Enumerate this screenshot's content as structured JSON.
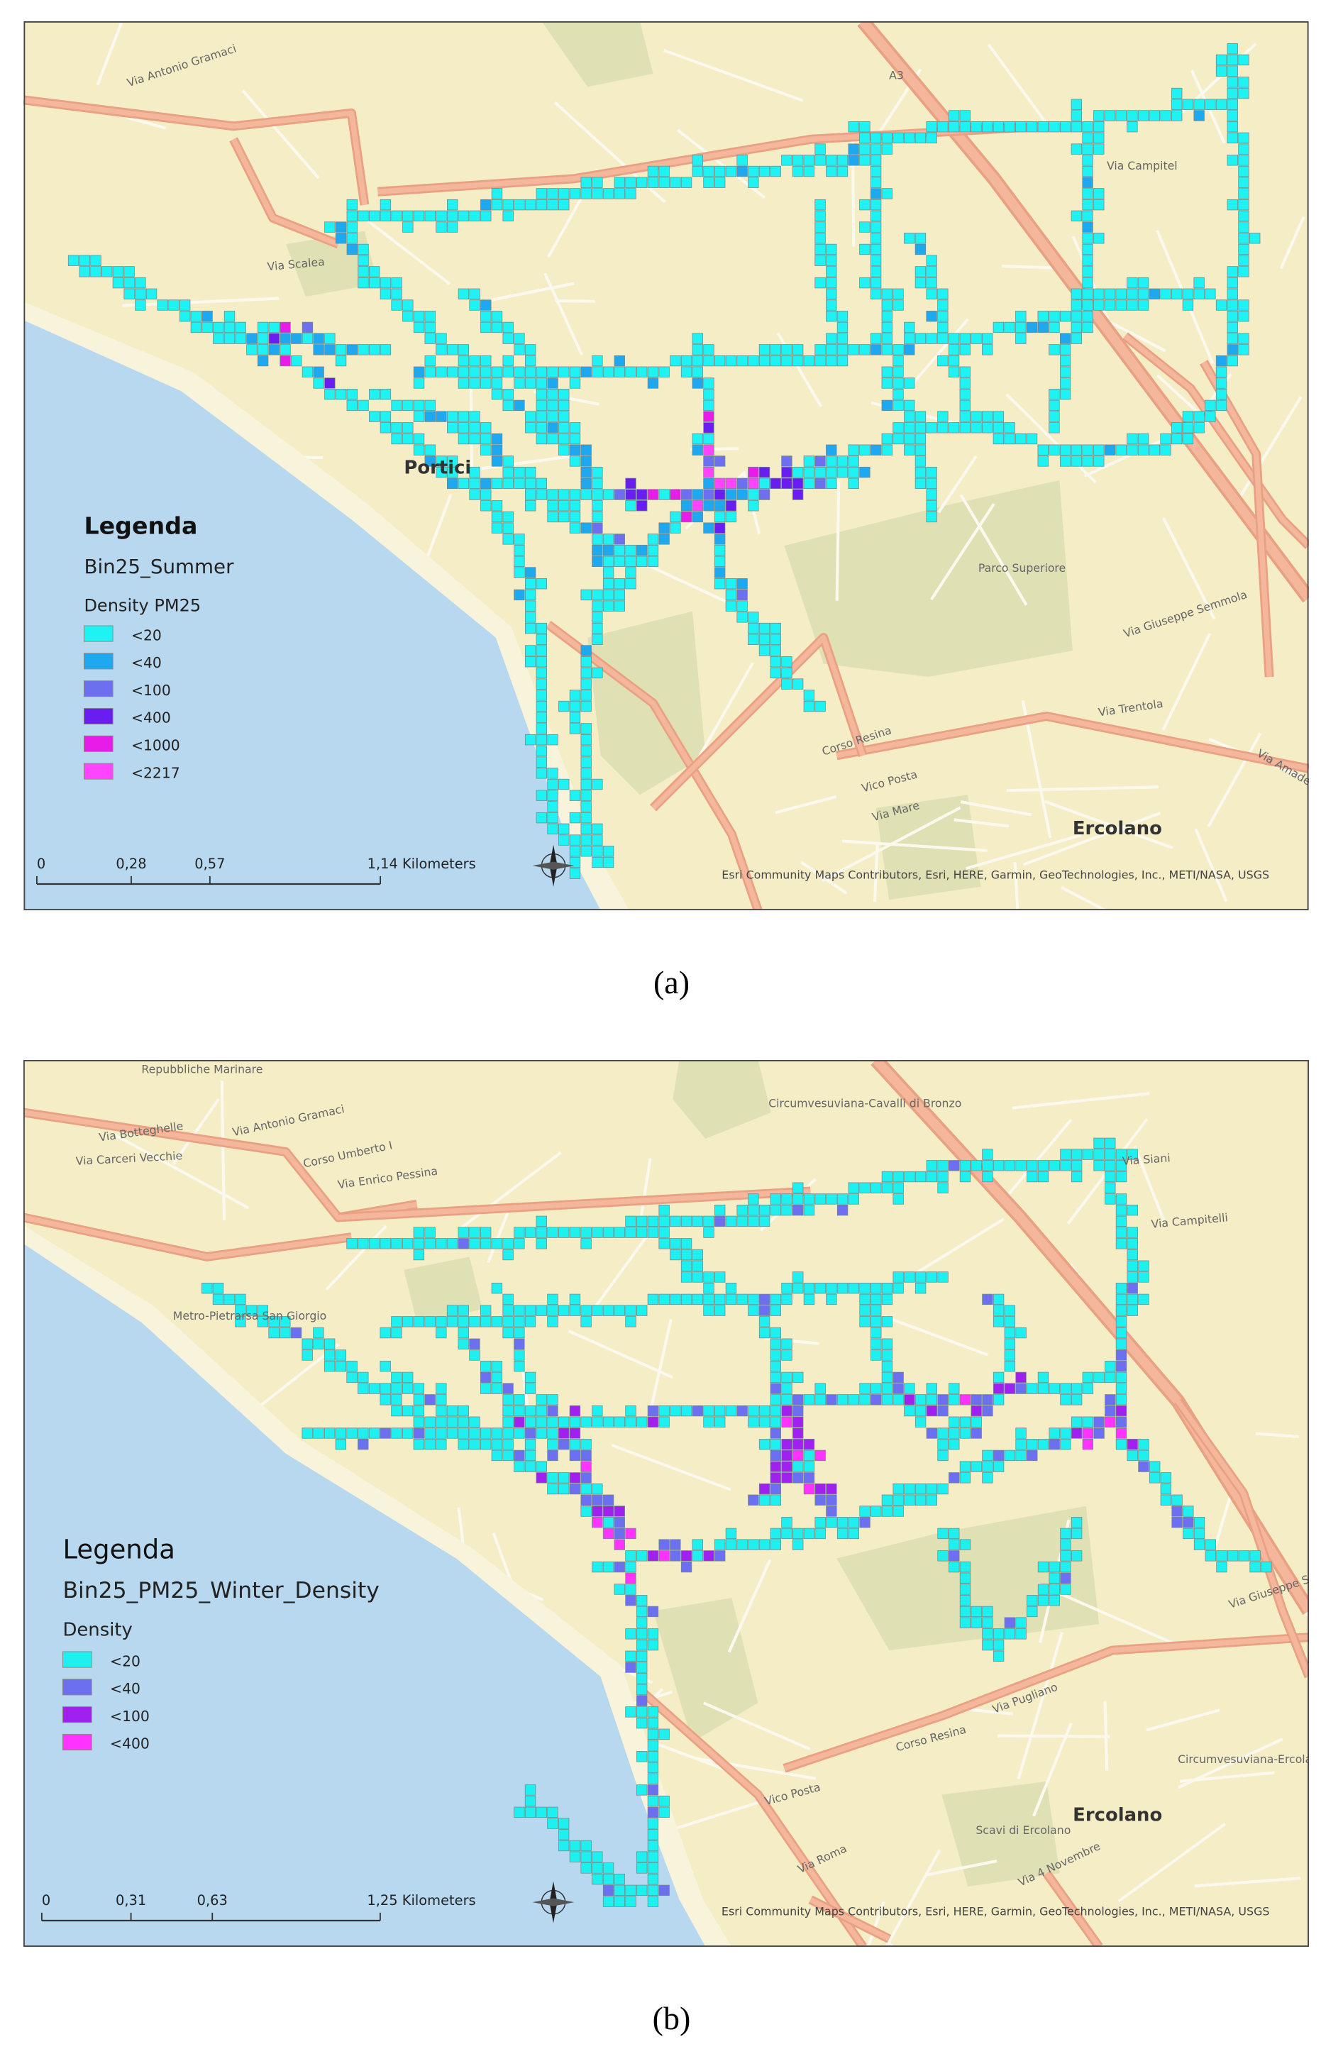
{
  "panels": [
    {
      "caption": "(a)",
      "legend": {
        "title": "Legenda",
        "layer": "Bin25_Summer",
        "field": "Density PM25",
        "items": [
          {
            "label": "<20",
            "color": "#1ef2f2"
          },
          {
            "label": "<40",
            "color": "#1ea8f0"
          },
          {
            "label": "<100",
            "color": "#6c6ff0"
          },
          {
            "label": "<400",
            "color": "#6a1df0"
          },
          {
            "label": "<1000",
            "color": "#e81ce8"
          },
          {
            "label": "<2217",
            "color": "#ff44ff"
          }
        ]
      },
      "scale_bar": [
        "0",
        "0,28",
        "0,57",
        "1,14 Kilometers"
      ],
      "attribution": "Esri Community Maps Contributors, Esri, HERE, Garmin, GeoTechnologies, Inc., METI/NASA, USGS",
      "places": [
        "Via Antonio Gramaci",
        "A3",
        "Via Campitel",
        "Via Scalea",
        "Portici",
        "Parco Superiore",
        "Via Giuseppe Semmola",
        "Via Trentola",
        "Corso Resina",
        "Vico Posta",
        "Via Mare",
        "Ercolano",
        "Via Amade"
      ]
    },
    {
      "caption": "(b)",
      "legend": {
        "title": "Legenda",
        "layer": "Bin25_PM25_Winter_Density",
        "field": "Density",
        "items": [
          {
            "label": "<20",
            "color": "#1ef0f0"
          },
          {
            "label": "<40",
            "color": "#6c6ff0"
          },
          {
            "label": "<100",
            "color": "#a020f0"
          },
          {
            "label": "<400",
            "color": "#ff33ff"
          }
        ]
      },
      "scale_bar": [
        "0",
        "0,31",
        "0,63",
        "1,25 Kilometers"
      ],
      "attribution": "Esri Community Maps Contributors, Esri, HERE, Garmin, GeoTechnologies, Inc., METI/NASA, USGS",
      "places": [
        "Repubbliche Marinare",
        "Via Botteghelle",
        "Via Carceri Vecchie",
        "Via Antonio Gramaci",
        "Corso Umberto I",
        "Via Enrico Pessina",
        "Circumvesuviana-Cavalli di Bronzo",
        "Via Siani",
        "Via Campitelli",
        "Metro-Pietrarsa San Giorgio",
        "Via Giuseppe Semmola",
        "Via Pugliano",
        "Circumvesuviana-Ercolano",
        "Corso Resina",
        "Vico Posta",
        "Via Roma",
        "Scavi di Ercolano",
        "Ercolano",
        "Via 4 Novembre"
      ]
    }
  ]
}
